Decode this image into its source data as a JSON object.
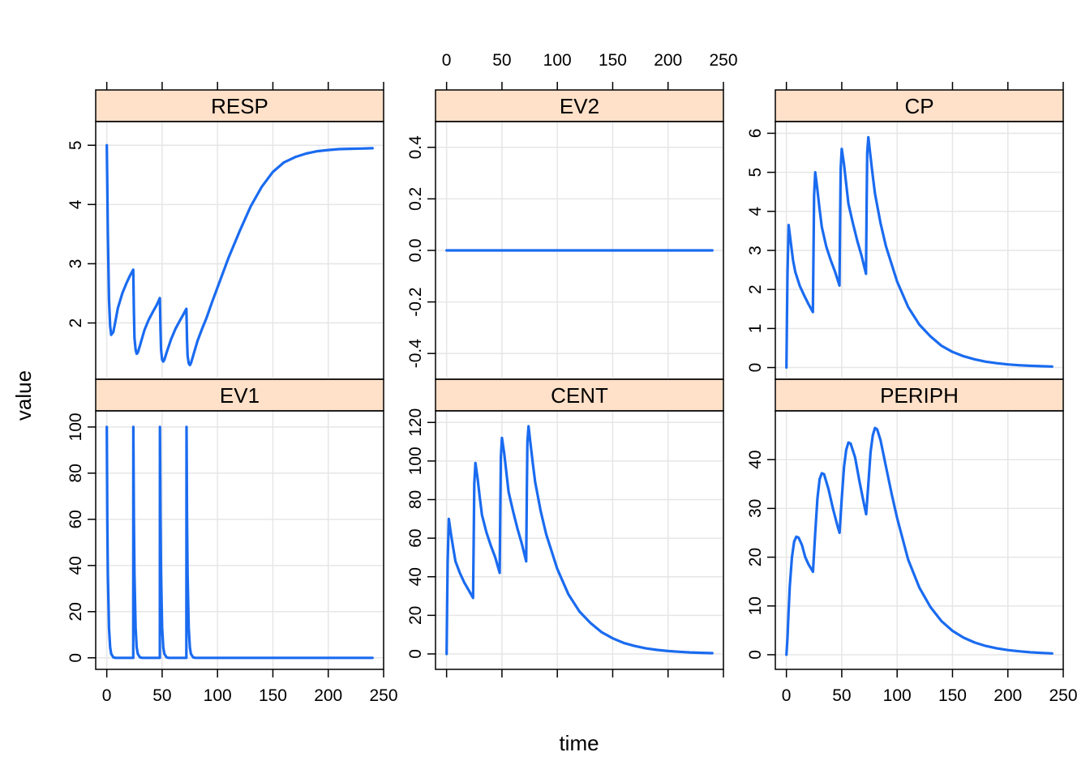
{
  "chart_data": {
    "type": "line",
    "xlabel": "time",
    "ylabel": "value",
    "xlim": [
      -10,
      250
    ],
    "x_ticks": [
      0,
      50,
      100,
      150,
      200,
      250
    ],
    "series_color": "#1a6bf0",
    "strip_color": "#ffe0c8",
    "grid": true,
    "layout": "3 columns x 2 rows, shared x axis",
    "panels": [
      {
        "name": "EV1",
        "ylim": [
          -5,
          107
        ],
        "y_ticks": [
          0,
          20,
          40,
          60,
          80,
          100
        ],
        "x": [
          0,
          0.5,
          1,
          2,
          3,
          4,
          6,
          8,
          12,
          23.9,
          24,
          24.5,
          25,
          26,
          27,
          28,
          30,
          32,
          36,
          47.9,
          48,
          48.5,
          49,
          50,
          51,
          52,
          54,
          56,
          60,
          71.9,
          72,
          72.5,
          73,
          74,
          75,
          76,
          78,
          80,
          100,
          150,
          200,
          240
        ],
        "y": [
          100,
          60,
          36,
          13,
          4.6,
          1.7,
          0.2,
          0,
          0,
          0,
          100,
          60,
          36,
          13,
          4.6,
          1.7,
          0.2,
          0,
          0,
          0,
          100,
          60,
          36,
          13,
          4.6,
          1.7,
          0.2,
          0,
          0,
          0,
          100,
          60,
          36,
          13,
          4.6,
          1.7,
          0.2,
          0,
          0,
          0,
          0,
          0
        ]
      },
      {
        "name": "CENT",
        "ylim": [
          -8,
          126
        ],
        "y_ticks": [
          0,
          20,
          40,
          60,
          80,
          100,
          120
        ],
        "x": [
          0,
          0.5,
          1,
          2,
          4,
          6,
          8,
          12,
          16,
          20,
          23.9,
          24.5,
          25,
          26,
          28,
          30,
          32,
          36,
          40,
          44,
          47.9,
          48.5,
          49,
          50,
          52,
          54,
          56,
          60,
          64,
          68,
          71.9,
          72.5,
          73,
          74,
          76,
          78,
          80,
          85,
          90,
          100,
          110,
          120,
          130,
          140,
          150,
          160,
          170,
          180,
          190,
          200,
          210,
          220,
          230,
          240
        ],
        "y": [
          0,
          25,
          48,
          70,
          62,
          55,
          48,
          42,
          37,
          33,
          29,
          60,
          88,
          99,
          91,
          81,
          72,
          63,
          56,
          50,
          42,
          76,
          102,
          112,
          104,
          94,
          84,
          74,
          65,
          57,
          48,
          84,
          110,
          118,
          108,
          98,
          89,
          74,
          62,
          44,
          31,
          22,
          16,
          11.3,
          8.1,
          5.7,
          4.1,
          2.9,
          2.1,
          1.5,
          1.1,
          0.8,
          0.55,
          0.4
        ]
      },
      {
        "name": "PERIPH",
        "ylim": [
          -3,
          50
        ],
        "y_ticks": [
          0,
          10,
          20,
          30,
          40
        ],
        "x": [
          0,
          1,
          2,
          3,
          5,
          7,
          9,
          11,
          14,
          17,
          20,
          24,
          26,
          28,
          30,
          32,
          34,
          38,
          42,
          46,
          48,
          50,
          52,
          54,
          56,
          58,
          62,
          66,
          70,
          72,
          74,
          76,
          78,
          80,
          82,
          85,
          90,
          95,
          100,
          110,
          120,
          130,
          140,
          150,
          160,
          170,
          180,
          190,
          200,
          210,
          220,
          230,
          240
        ],
        "y": [
          0,
          3.5,
          9,
          14,
          20,
          23.2,
          24.2,
          24,
          22.5,
          20,
          18.5,
          17,
          25,
          32,
          36,
          37.2,
          37,
          34,
          30,
          26.5,
          25,
          32,
          38.5,
          42,
          43.5,
          43.3,
          40.5,
          35.5,
          31,
          28.8,
          35,
          41.5,
          45,
          46.5,
          46.2,
          44,
          38.5,
          33,
          28,
          19.5,
          13.8,
          9.8,
          6.9,
          4.9,
          3.5,
          2.5,
          1.8,
          1.3,
          0.95,
          0.7,
          0.5,
          0.38,
          0.28
        ]
      },
      {
        "name": "RESP",
        "ylim": [
          1.05,
          5.4
        ],
        "y_ticks": [
          2,
          3,
          4,
          5
        ],
        "x": [
          0,
          1,
          2,
          3,
          4,
          6,
          8,
          10,
          14,
          18,
          21,
          23.9,
          24.5,
          25,
          26,
          27,
          28,
          30,
          34,
          38,
          42,
          45,
          47.9,
          48.5,
          49,
          50,
          51,
          52,
          54,
          58,
          62,
          66,
          69,
          71.9,
          72.5,
          73,
          74,
          75,
          76,
          78,
          82,
          86,
          90,
          95,
          100,
          110,
          120,
          130,
          140,
          150,
          160,
          170,
          180,
          190,
          200,
          210,
          220,
          230,
          240
        ],
        "y": [
          5,
          3.5,
          2.4,
          1.95,
          1.8,
          1.85,
          2.05,
          2.25,
          2.5,
          2.68,
          2.8,
          2.9,
          2.2,
          1.75,
          1.55,
          1.48,
          1.5,
          1.62,
          1.88,
          2.06,
          2.2,
          2.3,
          2.42,
          1.9,
          1.55,
          1.38,
          1.35,
          1.38,
          1.5,
          1.72,
          1.9,
          2.04,
          2.14,
          2.24,
          1.72,
          1.45,
          1.32,
          1.29,
          1.32,
          1.45,
          1.7,
          1.9,
          2.08,
          2.35,
          2.6,
          3.1,
          3.55,
          3.97,
          4.3,
          4.55,
          4.71,
          4.8,
          4.86,
          4.9,
          4.92,
          4.935,
          4.94,
          4.945,
          4.95
        ]
      },
      {
        "name": "EV2",
        "ylim": [
          -0.5,
          0.5
        ],
        "y_ticks": [
          -0.4,
          -0.2,
          0.0,
          0.2,
          0.4
        ],
        "y_tick_labels": [
          "-0.4",
          "-0.2",
          "0.0",
          "0.2",
          "0.4"
        ],
        "x": [
          0,
          240
        ],
        "y": [
          0,
          0
        ]
      },
      {
        "name": "CP",
        "ylim": [
          -0.3,
          6.3
        ],
        "y_ticks": [
          0,
          1,
          2,
          3,
          4,
          5,
          6
        ],
        "x": [
          0,
          0.5,
          1,
          2,
          4,
          6,
          8,
          12,
          16,
          20,
          23.9,
          24.5,
          25,
          26,
          28,
          30,
          32,
          36,
          40,
          44,
          47.9,
          48.5,
          49,
          50,
          52,
          54,
          56,
          60,
          64,
          68,
          71.9,
          72.5,
          73,
          74,
          76,
          78,
          80,
          85,
          90,
          100,
          110,
          120,
          130,
          140,
          150,
          160,
          170,
          180,
          190,
          200,
          210,
          220,
          230,
          240
        ],
        "y": [
          0,
          1.2,
          2.4,
          3.65,
          3.2,
          2.75,
          2.45,
          2.1,
          1.85,
          1.62,
          1.42,
          3.0,
          4.4,
          5.0,
          4.55,
          4.05,
          3.6,
          3.1,
          2.75,
          2.45,
          2.1,
          3.8,
          5.1,
          5.6,
          5.2,
          4.7,
          4.2,
          3.7,
          3.25,
          2.85,
          2.4,
          4.2,
          5.5,
          5.9,
          5.4,
          4.9,
          4.45,
          3.7,
          3.1,
          2.2,
          1.55,
          1.1,
          0.8,
          0.56,
          0.4,
          0.29,
          0.21,
          0.15,
          0.11,
          0.08,
          0.06,
          0.045,
          0.035,
          0.025
        ]
      }
    ]
  }
}
